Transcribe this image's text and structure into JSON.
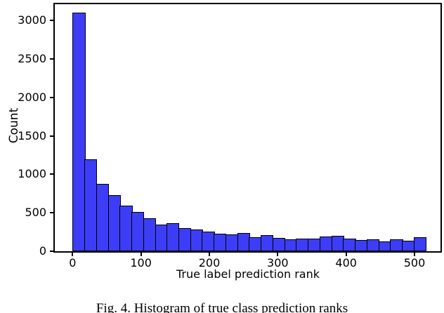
{
  "figure": {
    "caption": "Fig. 4.  Histogram of true class prediction ranks"
  },
  "chart_data": {
    "type": "bar",
    "subtype": "histogram",
    "title": "",
    "xlabel": "True label prediction rank",
    "ylabel": "Count",
    "bin_start": 0,
    "bin_width": 17.2,
    "num_bins": 30,
    "counts": [
      3100,
      1200,
      875,
      730,
      590,
      510,
      430,
      350,
      365,
      305,
      285,
      255,
      230,
      215,
      240,
      185,
      210,
      175,
      155,
      160,
      168,
      190,
      205,
      168,
      145,
      155,
      130,
      155,
      135,
      180
    ],
    "xticks": [
      0,
      100,
      200,
      300,
      400,
      500
    ],
    "yticks": [
      0,
      500,
      1000,
      1500,
      2000,
      2500,
      3000
    ],
    "xlim": [
      -26,
      538
    ],
    "ylim": [
      0,
      3212
    ],
    "grid": false,
    "legend": null,
    "bar_color": "#3d3df7",
    "bar_edge_color": "#000000",
    "axis_color": "#000000"
  }
}
